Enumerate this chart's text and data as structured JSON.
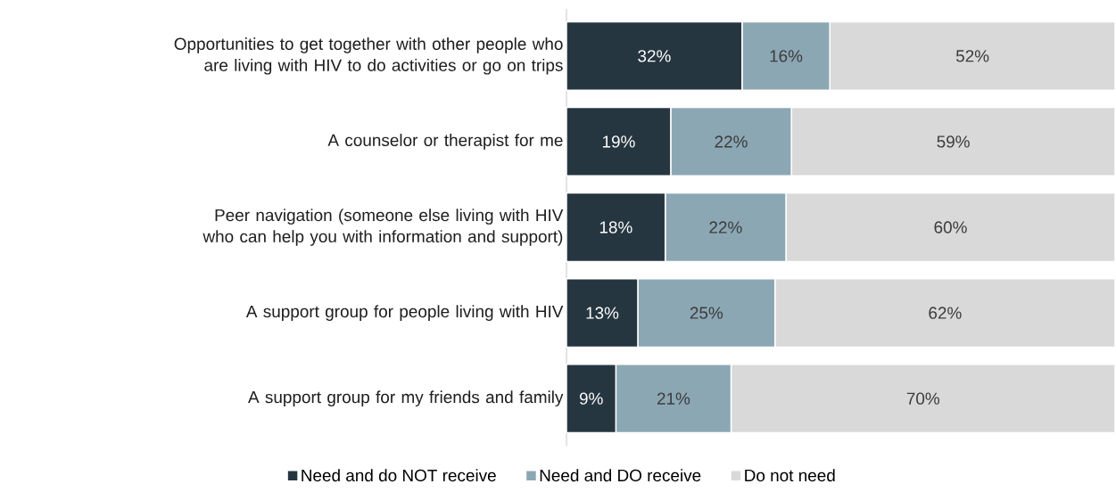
{
  "chart_data": {
    "type": "bar",
    "orientation": "horizontal",
    "stacked": true,
    "legend": "bottom",
    "tick_labels": "y",
    "categories": [
      "Opportunities to get together with other people who are living with HIV to do activities or go on trips",
      "A counselor or therapist for me",
      "Peer navigation (someone else living with HIV who can help you with information and support)",
      "A support group for people living with HIV",
      "A support group for my friends and family"
    ],
    "series": [
      {
        "name": "Need and do NOT receive",
        "color": "#263640",
        "values": [
          32,
          19,
          18,
          13,
          9
        ],
        "value_labels": [
          "32%",
          "19%",
          "18%",
          "13%",
          "9%"
        ]
      },
      {
        "name": "Need and DO receive",
        "color": "#8ca7b4",
        "values": [
          16,
          22,
          22,
          25,
          21
        ],
        "value_labels": [
          "16%",
          "22%",
          "22%",
          "25%",
          "21%"
        ]
      },
      {
        "name": "Do not need",
        "color": "#d9d9d9",
        "values": [
          52,
          59,
          60,
          62,
          70
        ],
        "value_labels": [
          "52%",
          "59%",
          "60%",
          "62%",
          "70%"
        ]
      }
    ]
  }
}
